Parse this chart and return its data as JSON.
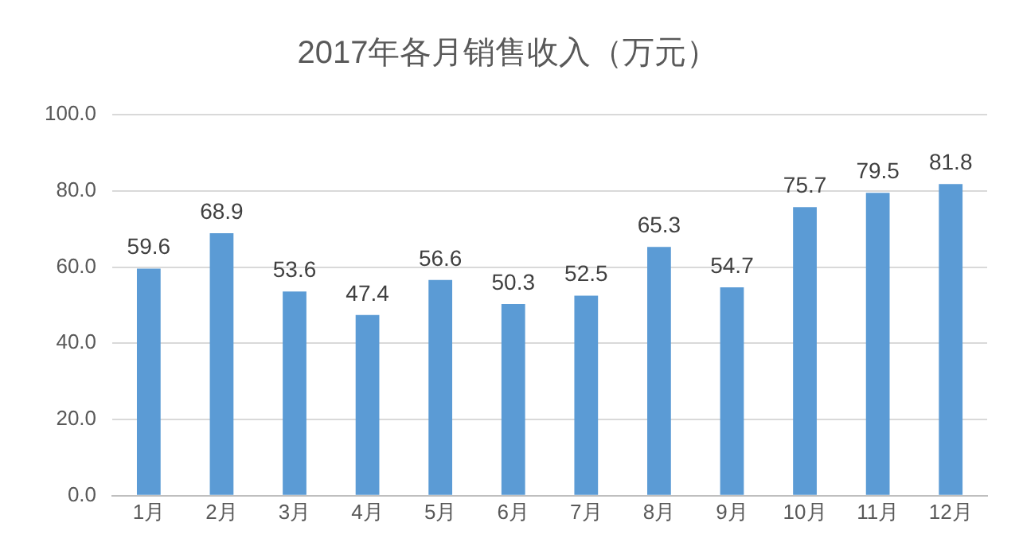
{
  "chart_data": {
    "type": "bar",
    "title": "2017年各月销售收入（万元）",
    "categories": [
      "1月",
      "2月",
      "3月",
      "4月",
      "5月",
      "6月",
      "7月",
      "8月",
      "9月",
      "10月",
      "11月",
      "12月"
    ],
    "values": [
      59.6,
      68.9,
      53.6,
      47.4,
      56.6,
      50.3,
      52.5,
      65.3,
      54.7,
      75.7,
      79.5,
      81.8
    ],
    "color": "#5b9bd5",
    "ylim": [
      0,
      100
    ],
    "yticks": [
      {
        "value": 0,
        "label": "0.0"
      },
      {
        "value": 20,
        "label": "20.0"
      },
      {
        "value": 40,
        "label": "40.0"
      },
      {
        "value": 60,
        "label": "60.0"
      },
      {
        "value": 80,
        "label": "80.0"
      },
      {
        "value": 100,
        "label": "100.0"
      }
    ],
    "grid": "y",
    "data_labels": true,
    "legend": false
  }
}
